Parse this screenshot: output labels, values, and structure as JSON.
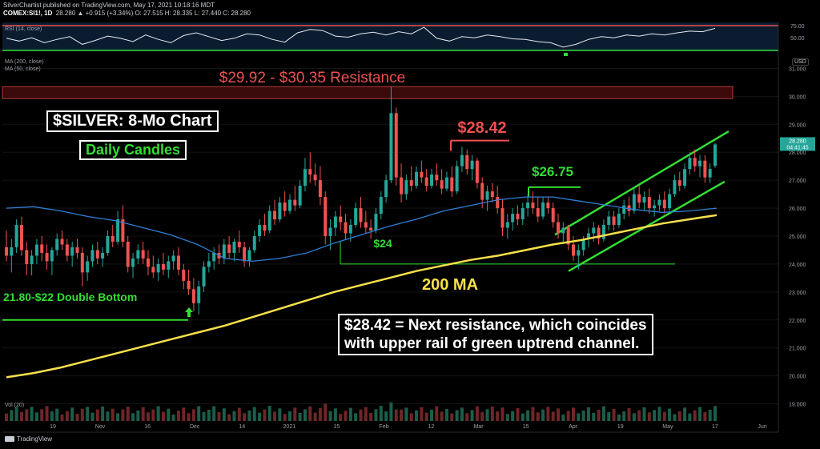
{
  "header": {
    "line1": "SilverChartist published on TradingView.com, May 17, 2021 10:18:16 MDT",
    "symbol": "COMEX:SI1!, 1D",
    "quote": "28.280  ▲ +0.915 (+3.34%)  O: 27.515  H: 28.335  L: 27.440  C: 28.280"
  },
  "indicators": {
    "rsi_label": "RSI (14, close)",
    "ma200_label": "MA (200, close)",
    "ma50_label": "MA (50, close)",
    "vol_label": "Vol (20)",
    "rsi_ticks": [
      "75.00",
      "50.00"
    ]
  },
  "currency": "USD",
  "price_tag": "28.280",
  "price_tag_time": "04:41:45",
  "branding": "TradingView",
  "annotations": {
    "resistance_zone": "$29.92 - $30.35 Resistance",
    "title": "$SILVER: 8-Mo Chart",
    "subtitle": "Daily Candles",
    "level_2842": "$28.42",
    "level_2675": "$26.75",
    "level_24": "$24",
    "ma_label": "200 MA",
    "double_bottom": "21.80-$22 Double Bottom",
    "note_line1": "$28.42 = Next resistance, which coincides",
    "note_line2": "with upper rail of green uptrend channel."
  },
  "colors": {
    "background": "#000000",
    "up_candle": "#26a69a",
    "down_candle": "#ef5350",
    "ma200": "#f7e04b",
    "ma50": "#2f7fd6",
    "annotation_green": "#33dd33",
    "annotation_red": "#f05050",
    "rsi_line": "#e6e9ef",
    "resistance_fill": "#3a0a0a"
  },
  "chart_data": {
    "type": "candlestick",
    "title": "$SILVER: 8-Mo Chart",
    "ylim": [
      18.5,
      31.5
    ],
    "y_ticks": [
      "19.000",
      "20.000",
      "21.000",
      "22.000",
      "23.000",
      "24.000",
      "25.000",
      "26.000",
      "27.000",
      "28.000",
      "29.000",
      "30.000",
      "31.000"
    ],
    "x_ticks": [
      "19",
      "Nov",
      "16",
      "Dec",
      "14",
      "2021",
      "15",
      "Feb",
      "12",
      "Mar",
      "15",
      "Apr",
      "19",
      "May",
      "17",
      "Jun"
    ],
    "ohlc": [
      {
        "o": 24.6,
        "h": 25.2,
        "l": 24.1,
        "c": 24.3
      },
      {
        "o": 24.3,
        "h": 24.9,
        "l": 23.7,
        "c": 24.6
      },
      {
        "o": 24.6,
        "h": 25.6,
        "l": 24.4,
        "c": 25.4
      },
      {
        "o": 25.4,
        "h": 25.7,
        "l": 24.3,
        "c": 24.5
      },
      {
        "o": 24.5,
        "h": 24.8,
        "l": 23.6,
        "c": 24.0
      },
      {
        "o": 24.0,
        "h": 24.5,
        "l": 23.6,
        "c": 24.3
      },
      {
        "o": 24.3,
        "h": 24.9,
        "l": 24.0,
        "c": 24.7
      },
      {
        "o": 24.7,
        "h": 25.0,
        "l": 24.1,
        "c": 24.4
      },
      {
        "o": 24.4,
        "h": 24.7,
        "l": 23.8,
        "c": 24.1
      },
      {
        "o": 24.1,
        "h": 24.6,
        "l": 23.6,
        "c": 24.5
      },
      {
        "o": 24.5,
        "h": 25.1,
        "l": 24.3,
        "c": 24.9
      },
      {
        "o": 24.9,
        "h": 25.2,
        "l": 24.5,
        "c": 24.7
      },
      {
        "o": 24.7,
        "h": 24.9,
        "l": 24.1,
        "c": 24.3
      },
      {
        "o": 24.3,
        "h": 24.8,
        "l": 23.9,
        "c": 24.6
      },
      {
        "o": 24.6,
        "h": 24.9,
        "l": 24.2,
        "c": 24.4
      },
      {
        "o": 24.4,
        "h": 24.6,
        "l": 23.2,
        "c": 23.7
      },
      {
        "o": 23.7,
        "h": 24.3,
        "l": 23.4,
        "c": 24.1
      },
      {
        "o": 24.1,
        "h": 24.7,
        "l": 23.9,
        "c": 24.5
      },
      {
        "o": 24.5,
        "h": 24.8,
        "l": 24.0,
        "c": 24.2
      },
      {
        "o": 24.2,
        "h": 24.6,
        "l": 23.9,
        "c": 24.4
      },
      {
        "o": 24.4,
        "h": 25.2,
        "l": 24.3,
        "c": 25.0
      },
      {
        "o": 25.0,
        "h": 25.4,
        "l": 24.6,
        "c": 24.8
      },
      {
        "o": 24.8,
        "h": 25.9,
        "l": 24.7,
        "c": 25.6
      },
      {
        "o": 25.6,
        "h": 26.1,
        "l": 24.6,
        "c": 24.8
      },
      {
        "o": 24.8,
        "h": 25.0,
        "l": 23.7,
        "c": 23.9
      },
      {
        "o": 23.9,
        "h": 24.4,
        "l": 23.5,
        "c": 24.2
      },
      {
        "o": 24.2,
        "h": 24.7,
        "l": 24.0,
        "c": 24.5
      },
      {
        "o": 24.5,
        "h": 24.8,
        "l": 24.0,
        "c": 24.2
      },
      {
        "o": 24.2,
        "h": 24.5,
        "l": 23.6,
        "c": 23.9
      },
      {
        "o": 23.9,
        "h": 24.3,
        "l": 23.5,
        "c": 23.7
      },
      {
        "o": 23.7,
        "h": 24.2,
        "l": 23.4,
        "c": 24.0
      },
      {
        "o": 24.0,
        "h": 24.4,
        "l": 23.6,
        "c": 23.8
      },
      {
        "o": 23.8,
        "h": 24.3,
        "l": 23.5,
        "c": 24.1
      },
      {
        "o": 24.1,
        "h": 24.5,
        "l": 23.8,
        "c": 24.3
      },
      {
        "o": 24.3,
        "h": 24.6,
        "l": 23.6,
        "c": 23.8
      },
      {
        "o": 23.8,
        "h": 24.0,
        "l": 23.1,
        "c": 23.4
      },
      {
        "o": 23.4,
        "h": 23.8,
        "l": 22.9,
        "c": 23.1
      },
      {
        "o": 23.1,
        "h": 23.5,
        "l": 22.3,
        "c": 22.6
      },
      {
        "o": 22.6,
        "h": 23.4,
        "l": 22.2,
        "c": 23.2
      },
      {
        "o": 23.2,
        "h": 24.1,
        "l": 23.0,
        "c": 23.9
      },
      {
        "o": 23.9,
        "h": 24.4,
        "l": 23.7,
        "c": 24.1
      },
      {
        "o": 24.1,
        "h": 24.6,
        "l": 23.8,
        "c": 24.4
      },
      {
        "o": 24.4,
        "h": 24.7,
        "l": 24.0,
        "c": 24.2
      },
      {
        "o": 24.2,
        "h": 24.9,
        "l": 24.0,
        "c": 24.7
      },
      {
        "o": 24.7,
        "h": 25.0,
        "l": 24.2,
        "c": 24.4
      },
      {
        "o": 24.4,
        "h": 24.9,
        "l": 24.1,
        "c": 24.8
      },
      {
        "o": 24.8,
        "h": 25.2,
        "l": 24.4,
        "c": 24.6
      },
      {
        "o": 24.6,
        "h": 24.8,
        "l": 23.9,
        "c": 24.1
      },
      {
        "o": 24.1,
        "h": 24.6,
        "l": 23.9,
        "c": 24.5
      },
      {
        "o": 24.5,
        "h": 25.2,
        "l": 24.4,
        "c": 25.0
      },
      {
        "o": 25.0,
        "h": 25.6,
        "l": 24.8,
        "c": 25.4
      },
      {
        "o": 25.4,
        "h": 25.8,
        "l": 25.0,
        "c": 25.2
      },
      {
        "o": 25.2,
        "h": 26.1,
        "l": 25.1,
        "c": 25.9
      },
      {
        "o": 25.9,
        "h": 26.3,
        "l": 25.4,
        "c": 25.6
      },
      {
        "o": 25.6,
        "h": 26.4,
        "l": 25.5,
        "c": 26.2
      },
      {
        "o": 26.2,
        "h": 26.6,
        "l": 25.7,
        "c": 25.9
      },
      {
        "o": 25.9,
        "h": 26.5,
        "l": 25.8,
        "c": 26.3
      },
      {
        "o": 26.3,
        "h": 26.8,
        "l": 25.9,
        "c": 26.1
      },
      {
        "o": 26.1,
        "h": 27.0,
        "l": 26.0,
        "c": 26.8
      },
      {
        "o": 26.8,
        "h": 27.8,
        "l": 26.6,
        "c": 27.4
      },
      {
        "o": 27.4,
        "h": 28.0,
        "l": 26.9,
        "c": 27.2
      },
      {
        "o": 27.2,
        "h": 27.6,
        "l": 26.8,
        "c": 27.0
      },
      {
        "o": 27.0,
        "h": 27.5,
        "l": 26.1,
        "c": 26.4
      },
      {
        "o": 26.4,
        "h": 26.6,
        "l": 24.7,
        "c": 25.0
      },
      {
        "o": 25.0,
        "h": 25.6,
        "l": 24.5,
        "c": 25.3
      },
      {
        "o": 25.3,
        "h": 25.9,
        "l": 25.0,
        "c": 25.7
      },
      {
        "o": 25.7,
        "h": 26.1,
        "l": 25.2,
        "c": 25.5
      },
      {
        "o": 25.5,
        "h": 25.8,
        "l": 24.9,
        "c": 25.1
      },
      {
        "o": 25.1,
        "h": 25.6,
        "l": 24.8,
        "c": 25.4
      },
      {
        "o": 25.4,
        "h": 26.2,
        "l": 25.3,
        "c": 26.0
      },
      {
        "o": 26.0,
        "h": 26.4,
        "l": 25.3,
        "c": 25.5
      },
      {
        "o": 25.5,
        "h": 25.9,
        "l": 25.1,
        "c": 25.3
      },
      {
        "o": 25.3,
        "h": 25.6,
        "l": 24.9,
        "c": 25.2
      },
      {
        "o": 25.2,
        "h": 26.0,
        "l": 25.1,
        "c": 25.8
      },
      {
        "o": 25.8,
        "h": 26.6,
        "l": 25.6,
        "c": 26.4
      },
      {
        "o": 26.4,
        "h": 27.2,
        "l": 26.2,
        "c": 27.0
      },
      {
        "o": 27.0,
        "h": 30.35,
        "l": 26.9,
        "c": 29.4
      },
      {
        "o": 29.4,
        "h": 29.6,
        "l": 26.8,
        "c": 27.1
      },
      {
        "o": 27.1,
        "h": 27.6,
        "l": 26.2,
        "c": 26.5
      },
      {
        "o": 26.5,
        "h": 27.2,
        "l": 26.3,
        "c": 27.0
      },
      {
        "o": 27.0,
        "h": 27.5,
        "l": 26.6,
        "c": 26.8
      },
      {
        "o": 26.8,
        "h": 27.5,
        "l": 26.7,
        "c": 27.3
      },
      {
        "o": 27.3,
        "h": 27.7,
        "l": 26.9,
        "c": 27.1
      },
      {
        "o": 27.1,
        "h": 27.4,
        "l": 26.6,
        "c": 26.8
      },
      {
        "o": 26.8,
        "h": 27.4,
        "l": 26.7,
        "c": 27.2
      },
      {
        "o": 27.2,
        "h": 27.6,
        "l": 26.8,
        "c": 27.0
      },
      {
        "o": 27.0,
        "h": 27.4,
        "l": 26.5,
        "c": 26.7
      },
      {
        "o": 26.7,
        "h": 27.3,
        "l": 26.6,
        "c": 27.1
      },
      {
        "o": 27.1,
        "h": 27.5,
        "l": 26.4,
        "c": 26.6
      },
      {
        "o": 26.6,
        "h": 27.7,
        "l": 26.5,
        "c": 27.5
      },
      {
        "o": 27.5,
        "h": 28.2,
        "l": 27.3,
        "c": 27.9
      },
      {
        "o": 27.9,
        "h": 28.1,
        "l": 27.2,
        "c": 27.4
      },
      {
        "o": 27.4,
        "h": 27.9,
        "l": 27.0,
        "c": 27.7
      },
      {
        "o": 27.7,
        "h": 27.8,
        "l": 26.7,
        "c": 26.9
      },
      {
        "o": 26.9,
        "h": 27.1,
        "l": 26.0,
        "c": 26.3
      },
      {
        "o": 26.3,
        "h": 26.8,
        "l": 25.9,
        "c": 26.6
      },
      {
        "o": 26.6,
        "h": 26.9,
        "l": 26.2,
        "c": 26.4
      },
      {
        "o": 26.4,
        "h": 26.8,
        "l": 25.8,
        "c": 26.0
      },
      {
        "o": 26.0,
        "h": 26.3,
        "l": 25.0,
        "c": 25.3
      },
      {
        "o": 25.3,
        "h": 25.8,
        "l": 24.9,
        "c": 25.5
      },
      {
        "o": 25.5,
        "h": 26.0,
        "l": 25.2,
        "c": 25.8
      },
      {
        "o": 25.8,
        "h": 26.1,
        "l": 25.4,
        "c": 25.6
      },
      {
        "o": 25.6,
        "h": 26.2,
        "l": 25.4,
        "c": 26.0
      },
      {
        "o": 26.0,
        "h": 26.5,
        "l": 25.7,
        "c": 26.2
      },
      {
        "o": 26.2,
        "h": 26.6,
        "l": 25.8,
        "c": 26.0
      },
      {
        "o": 26.0,
        "h": 26.4,
        "l": 25.5,
        "c": 25.7
      },
      {
        "o": 25.7,
        "h": 26.4,
        "l": 25.6,
        "c": 26.2
      },
      {
        "o": 26.2,
        "h": 26.4,
        "l": 25.8,
        "c": 26.0
      },
      {
        "o": 26.0,
        "h": 26.2,
        "l": 25.3,
        "c": 25.5
      },
      {
        "o": 25.5,
        "h": 25.8,
        "l": 24.9,
        "c": 25.1
      },
      {
        "o": 25.1,
        "h": 25.5,
        "l": 24.8,
        "c": 25.3
      },
      {
        "o": 25.3,
        "h": 25.4,
        "l": 24.5,
        "c": 24.7
      },
      {
        "o": 24.7,
        "h": 25.0,
        "l": 24.1,
        "c": 24.3
      },
      {
        "o": 24.3,
        "h": 24.7,
        "l": 23.8,
        "c": 24.5
      },
      {
        "o": 24.5,
        "h": 25.0,
        "l": 24.3,
        "c": 24.9
      },
      {
        "o": 24.9,
        "h": 25.3,
        "l": 24.6,
        "c": 25.1
      },
      {
        "o": 25.1,
        "h": 25.5,
        "l": 24.8,
        "c": 25.3
      },
      {
        "o": 25.3,
        "h": 25.4,
        "l": 24.7,
        "c": 24.9
      },
      {
        "o": 24.9,
        "h": 25.6,
        "l": 24.8,
        "c": 25.4
      },
      {
        "o": 25.4,
        "h": 25.9,
        "l": 25.2,
        "c": 25.7
      },
      {
        "o": 25.7,
        "h": 25.9,
        "l": 25.2,
        "c": 25.4
      },
      {
        "o": 25.4,
        "h": 26.0,
        "l": 25.3,
        "c": 25.8
      },
      {
        "o": 25.8,
        "h": 26.3,
        "l": 25.6,
        "c": 26.1
      },
      {
        "o": 26.1,
        "h": 26.4,
        "l": 25.7,
        "c": 25.9
      },
      {
        "o": 25.9,
        "h": 26.7,
        "l": 25.8,
        "c": 26.5
      },
      {
        "o": 26.5,
        "h": 26.8,
        "l": 26.0,
        "c": 26.2
      },
      {
        "o": 26.2,
        "h": 26.6,
        "l": 25.9,
        "c": 26.4
      },
      {
        "o": 26.4,
        "h": 26.7,
        "l": 25.8,
        "c": 26.0
      },
      {
        "o": 26.0,
        "h": 26.3,
        "l": 25.7,
        "c": 26.1
      },
      {
        "o": 26.1,
        "h": 26.5,
        "l": 25.9,
        "c": 26.3
      },
      {
        "o": 26.3,
        "h": 26.6,
        "l": 25.8,
        "c": 26.0
      },
      {
        "o": 26.0,
        "h": 26.7,
        "l": 25.9,
        "c": 26.5
      },
      {
        "o": 26.5,
        "h": 27.2,
        "l": 26.4,
        "c": 27.0
      },
      {
        "o": 27.0,
        "h": 27.3,
        "l": 26.6,
        "c": 26.8
      },
      {
        "o": 26.8,
        "h": 27.6,
        "l": 26.7,
        "c": 27.4
      },
      {
        "o": 27.4,
        "h": 28.0,
        "l": 27.2,
        "c": 27.8
      },
      {
        "o": 27.8,
        "h": 28.1,
        "l": 27.3,
        "c": 27.5
      },
      {
        "o": 27.5,
        "h": 27.9,
        "l": 27.1,
        "c": 27.7
      },
      {
        "o": 27.7,
        "h": 27.9,
        "l": 26.9,
        "c": 27.1
      },
      {
        "o": 27.1,
        "h": 27.6,
        "l": 26.9,
        "c": 27.4
      },
      {
        "o": 27.515,
        "h": 28.335,
        "l": 27.44,
        "c": 28.28
      }
    ],
    "ma50": [
      26.0,
      26.05,
      25.9,
      25.7,
      25.55,
      25.3,
      25.05,
      24.7,
      24.2,
      24.1,
      24.2,
      24.4,
      24.75,
      25.05,
      25.35,
      25.6,
      25.9,
      26.1,
      26.3,
      26.4,
      26.4,
      26.25,
      26.1,
      25.95,
      25.85,
      25.9,
      26.0
    ],
    "ma200": [
      19.95,
      20.1,
      20.3,
      20.55,
      20.8,
      21.05,
      21.3,
      21.55,
      21.8,
      22.1,
      22.4,
      22.7,
      23.0,
      23.25,
      23.5,
      23.75,
      23.95,
      24.15,
      24.3,
      24.5,
      24.7,
      24.85,
      25.05,
      25.25,
      25.45,
      25.6,
      25.75
    ],
    "rsi": [
      52,
      47,
      53,
      44,
      50,
      55,
      41,
      48,
      56,
      52,
      46,
      58,
      50,
      44,
      57,
      62,
      55,
      48,
      52,
      60,
      58,
      50,
      45,
      62,
      68,
      66,
      56,
      54,
      60,
      63,
      58,
      64,
      60,
      72,
      52,
      47,
      55,
      53,
      58,
      55,
      51,
      50,
      46,
      44,
      36,
      41,
      50,
      55,
      53,
      58,
      56,
      60,
      58,
      62,
      65,
      64,
      70
    ],
    "levels": {
      "resistance_zone": [
        29.92,
        30.35
      ],
      "level_2842": 28.42,
      "level_2675": 26.75,
      "support_24": 24.0,
      "double_bottom": 22.0
    }
  }
}
